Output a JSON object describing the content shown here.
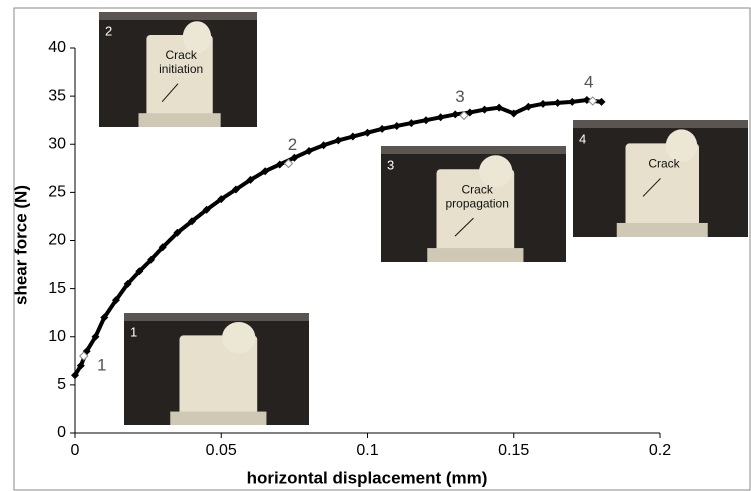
{
  "chart_data": {
    "type": "line",
    "x_label": "horizontal displacement (mm)",
    "y_label": "shear force (N)",
    "x": [
      0,
      0.002,
      0.004,
      0.007,
      0.01,
      0.014,
      0.018,
      0.022,
      0.026,
      0.03,
      0.035,
      0.04,
      0.045,
      0.05,
      0.055,
      0.06,
      0.065,
      0.07,
      0.075,
      0.08,
      0.085,
      0.09,
      0.095,
      0.1,
      0.105,
      0.11,
      0.115,
      0.12,
      0.125,
      0.13,
      0.135,
      0.14,
      0.145,
      0.15,
      0.155,
      0.16,
      0.165,
      0.17,
      0.175,
      0.18
    ],
    "values": [
      6,
      7,
      8.5,
      10,
      12,
      13.8,
      15.5,
      16.8,
      18,
      19.3,
      20.8,
      22,
      23.2,
      24.3,
      25.3,
      26.3,
      27.2,
      27.9,
      28.6,
      29.3,
      29.9,
      30.4,
      30.8,
      31.2,
      31.6,
      31.9,
      32.2,
      32.5,
      32.8,
      33.1,
      33.3,
      33.6,
      33.8,
      33.2,
      33.9,
      34.2,
      34.3,
      34.4,
      34.6,
      34.4
    ],
    "color": "#000000",
    "xlim": [
      0,
      0.2
    ],
    "xticks": [
      0,
      0.05,
      0.1,
      0.15,
      0.2
    ],
    "ylim": [
      0,
      40
    ],
    "yticks": [
      0,
      5,
      10,
      15,
      20,
      25,
      30,
      35,
      40
    ],
    "annotations": [
      {
        "text": "1",
        "x": 0.003,
        "y": 8
      },
      {
        "text": "2",
        "x": 0.073,
        "y": 28
      },
      {
        "text": "3",
        "x": 0.133,
        "y": 33
      },
      {
        "text": "4",
        "x": 0.177,
        "y": 34.5
      }
    ],
    "insets": [
      {
        "label": "2",
        "text": [
          "Crack",
          "initiation"
        ]
      },
      {
        "label": "3",
        "text": [
          "Crack",
          "propagation"
        ]
      },
      {
        "label": "4",
        "text": [
          "Crack"
        ]
      },
      {
        "label": "1",
        "text": []
      }
    ]
  }
}
